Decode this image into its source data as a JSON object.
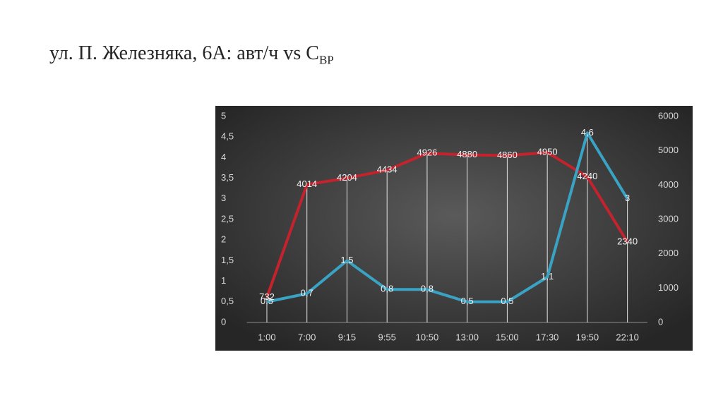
{
  "title": "ул. П. Железняка, 6А: авт/ч vs C",
  "title_subscript": "ВР",
  "chart_data": {
    "type": "line",
    "categories": [
      "1:00",
      "7:00",
      "9:15",
      "9:55",
      "10:50",
      "13:00",
      "15:00",
      "17:30",
      "19:50",
      "22:10"
    ],
    "series": [
      {
        "color": "#c4232d",
        "axis": "y2",
        "values": [
          732,
          4014,
          4204,
          4434,
          4926,
          4880,
          4860,
          4950,
          4240,
          2340
        ]
      },
      {
        "color": "#3aa3c4",
        "values": [
          0.5,
          0.7,
          1.5,
          0.8,
          0.8,
          0.5,
          0.5,
          1.1,
          4.6,
          3
        ],
        "value_labels": [
          "0,5",
          "0,7",
          "1,5",
          "0,8",
          "0,8",
          "0,5",
          "0,5",
          "1,1",
          "4,6",
          "3"
        ]
      }
    ],
    "ylim": [
      0,
      5
    ],
    "yticks": [
      0,
      {
        "value": 0.5,
        "label": "0,5"
      },
      1,
      {
        "value": 1.5,
        "label": "1,5"
      },
      2,
      {
        "value": 2.5,
        "label": "2,5"
      },
      3,
      {
        "value": 3.5,
        "label": "3,5"
      },
      4,
      {
        "value": 4.5,
        "label": "4,5"
      },
      5
    ],
    "y2lim": [
      0,
      6000
    ],
    "y2ticks": [
      0,
      1000,
      2000,
      3000,
      4000,
      5000,
      6000
    ]
  }
}
